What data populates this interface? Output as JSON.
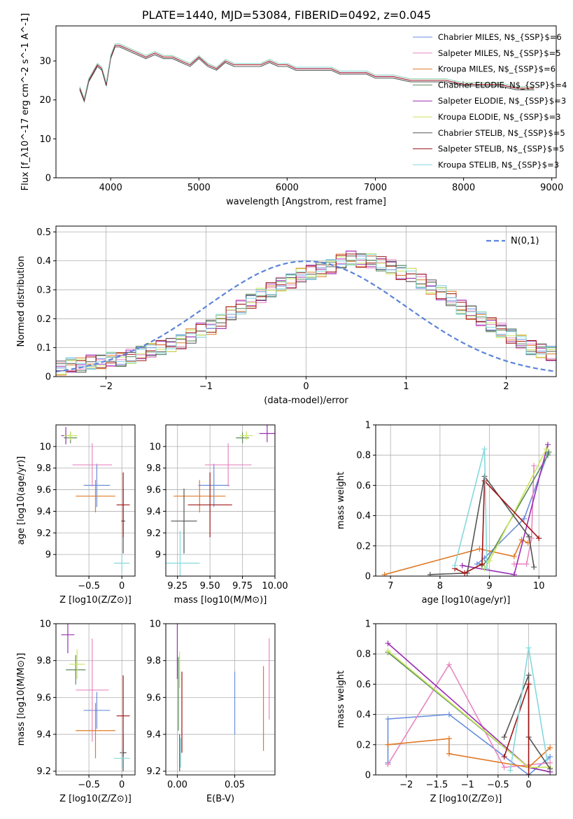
{
  "title": "PLATE=1440, MJD=53084, FIBERID=0492, z=0.045",
  "series": [
    {
      "name": "Chabrier MILES, N$_{SSP}$=6",
      "color": "#6a8fdc"
    },
    {
      "name": "Salpeter MILES, N$_{SSP}$=5",
      "color": "#e787c0"
    },
    {
      "name": "Kroupa MILES, N$_{SSP}$=6",
      "color": "#e07a26"
    },
    {
      "name": "Chabrier ELODIE, N$_{SSP}$=4",
      "color": "#5b8a5b"
    },
    {
      "name": "Salpeter ELODIE, N$_{SSP}$=3",
      "color": "#9b2fb4"
    },
    {
      "name": "Kroupa ELODIE, N$_{SSP}$=3",
      "color": "#c9e65a"
    },
    {
      "name": "Chabrier STELIB, N$_{SSP}$=5",
      "color": "#555555"
    },
    {
      "name": "Salpeter STELIB, N$_{SSP}$=5",
      "color": "#a01515"
    },
    {
      "name": "Kroupa STELIB, N$_{SSP}$=3",
      "color": "#85d9dc"
    }
  ],
  "chart_data": [
    {
      "id": "spectrum",
      "type": "line",
      "xlabel": "wavelength [Angstrom, rest frame]",
      "ylabel": "Flux [f_λ10^-17 erg cm^-2 s^-1 A^-1]",
      "xlim": [
        3380,
        9050
      ],
      "ylim": [
        0,
        39
      ],
      "xticks": [
        4000,
        5000,
        6000,
        7000,
        8000,
        9000
      ],
      "yticks": [
        0,
        10,
        20,
        30
      ],
      "grid": false,
      "legend": "top-right",
      "x": [
        3650,
        3700,
        3750,
        3800,
        3850,
        3900,
        3950,
        4000,
        4050,
        4100,
        4200,
        4300,
        4400,
        4500,
        4600,
        4700,
        4800,
        4900,
        5000,
        5100,
        5200,
        5300,
        5400,
        5500,
        5600,
        5700,
        5800,
        5900,
        6000,
        6100,
        6200,
        6300,
        6400,
        6500,
        6600,
        6700,
        6800,
        6900,
        7000,
        7200,
        7400,
        7600,
        7800,
        8000,
        8200,
        8400,
        8600,
        8800
      ],
      "y": [
        23,
        20,
        25,
        27,
        29,
        28,
        24,
        31,
        34,
        34,
        33,
        32,
        31,
        32,
        31,
        31,
        30,
        29,
        31,
        29,
        28,
        30,
        29,
        29,
        29,
        29,
        30,
        29,
        29,
        28,
        28,
        28,
        28,
        28,
        27,
        27,
        27,
        27,
        26,
        26,
        25,
        25,
        25,
        24,
        24,
        24,
        23,
        23
      ]
    },
    {
      "id": "residuals",
      "type": "bar",
      "xlabel": "(data-model)/error",
      "ylabel": "Normed distribution",
      "xlim": [
        -2.5,
        2.5
      ],
      "ylim": [
        0,
        0.52
      ],
      "xticks": [
        -2,
        -1,
        0,
        1,
        2
      ],
      "yticks": [
        0.0,
        0.1,
        0.2,
        0.3,
        0.4,
        0.5
      ],
      "grid": true,
      "legend": "top-right",
      "legend_label": "N(0,1)",
      "bin_width": 0.1,
      "bin_start": -2.5,
      "values": [
        0.03,
        0.04,
        0.04,
        0.05,
        0.05,
        0.06,
        0.06,
        0.07,
        0.08,
        0.09,
        0.1,
        0.11,
        0.12,
        0.14,
        0.16,
        0.17,
        0.19,
        0.22,
        0.24,
        0.26,
        0.28,
        0.3,
        0.32,
        0.33,
        0.35,
        0.36,
        0.37,
        0.38,
        0.4,
        0.41,
        0.4,
        0.4,
        0.39,
        0.38,
        0.36,
        0.35,
        0.33,
        0.31,
        0.29,
        0.27,
        0.24,
        0.22,
        0.2,
        0.18,
        0.16,
        0.14,
        0.12,
        0.1,
        0.09,
        0.08
      ]
    },
    {
      "id": "age-vs-Z",
      "type": "scatter",
      "xlabel": "Z [log10(Z/Z⊙)]",
      "ylabel": "age  [log10(age/yr)]",
      "xlim": [
        -1.0,
        0.2
      ],
      "ylim": [
        8.8,
        10.2
      ],
      "xticks": [
        -0.5,
        0.0
      ],
      "yticks": [
        9.0,
        9.2,
        9.4,
        9.6,
        9.8,
        10.0
      ],
      "grid": true,
      "points": [
        {
          "x": -0.38,
          "y": 9.64,
          "xerr": 0.2,
          "yerr": 0.2
        },
        {
          "x": -0.45,
          "y": 9.83,
          "xerr": 0.3,
          "yerr": 0.2
        },
        {
          "x": -0.4,
          "y": 9.54,
          "xerr": 0.3,
          "yerr": 0.15
        },
        {
          "x": -0.78,
          "y": 10.08,
          "xerr": 0.1,
          "yerr": 0.05
        },
        {
          "x": -0.85,
          "y": 10.1,
          "xerr": 0.07,
          "yerr": 0.08
        },
        {
          "x": -0.78,
          "y": 10.1,
          "xerr": 0.1,
          "yerr": 0.04
        },
        {
          "x": 0.02,
          "y": 9.31,
          "xerr": 0.03,
          "yerr": 0.3
        },
        {
          "x": 0.02,
          "y": 9.46,
          "xerr": 0.1,
          "yerr": 0.3
        },
        {
          "x": 0.0,
          "y": 8.92,
          "xerr": 0.12,
          "yerr": 0.08
        }
      ]
    },
    {
      "id": "age-vs-mass",
      "type": "scatter",
      "xlabel": "mass [log10(M/M⊙)]",
      "ylabel": "",
      "xlim": [
        9.16,
        10.0
      ],
      "ylim": [
        8.8,
        10.2
      ],
      "xticks": [
        9.25,
        9.5,
        9.75,
        10.0
      ],
      "xtick_labels": [
        "9.25",
        "9.50",
        "9.75",
        "10.00"
      ],
      "yticks": [
        9.0,
        9.2,
        9.4,
        9.6,
        9.8,
        10.0
      ],
      "grid": true,
      "points": [
        {
          "x": 9.53,
          "y": 9.64,
          "xerr": 0.12,
          "yerr": 0.2
        },
        {
          "x": 9.64,
          "y": 9.83,
          "xerr": 0.18,
          "yerr": 0.2
        },
        {
          "x": 9.42,
          "y": 9.54,
          "xerr": 0.2,
          "yerr": 0.15
        },
        {
          "x": 9.75,
          "y": 10.08,
          "xerr": 0.05,
          "yerr": 0.05
        },
        {
          "x": 9.94,
          "y": 10.12,
          "xerr": 0.06,
          "yerr": 0.08
        },
        {
          "x": 9.78,
          "y": 10.1,
          "xerr": 0.05,
          "yerr": 0.04
        },
        {
          "x": 9.3,
          "y": 9.31,
          "xerr": 0.1,
          "yerr": 0.3
        },
        {
          "x": 9.5,
          "y": 9.46,
          "xerr": 0.17,
          "yerr": 0.3
        },
        {
          "x": 9.27,
          "y": 8.92,
          "xerr": 0.15,
          "yerr": 0.3
        }
      ]
    },
    {
      "id": "weight-vs-age",
      "type": "line",
      "xlabel": "age  [log10(age/yr)]",
      "ylabel": "mass weight",
      "xlim": [
        6.7,
        10.35
      ],
      "ylim": [
        0,
        1.0
      ],
      "xticks": [
        7,
        8,
        9,
        10
      ],
      "yticks": [
        0.0,
        0.2,
        0.4,
        0.6,
        0.8,
        1.0
      ],
      "grid": true,
      "series": [
        {
          "x": [
            8.75,
            8.9,
            9.7,
            10.18
          ],
          "y": [
            0.08,
            0.12,
            0.38,
            0.81
          ]
        },
        {
          "x": [
            9.5,
            9.75,
            9.85,
            9.9
          ],
          "y": [
            0.08,
            0.08,
            0.25,
            0.73
          ]
        },
        {
          "x": [
            6.88,
            8.8,
            9.5,
            9.65,
            9.78
          ],
          "y": [
            0.01,
            0.18,
            0.13,
            0.24,
            0.22
          ]
        },
        {
          "x": [
            8.85,
            8.95,
            10.18,
            10.2
          ],
          "y": [
            0.07,
            0.1,
            0.8,
            0.82
          ]
        },
        {
          "x": [
            8.45,
            9.5,
            10.18
          ],
          "y": [
            0.07,
            0.01,
            0.87
          ]
        },
        {
          "x": [
            8.9,
            9.0,
            10.15
          ],
          "y": [
            0.05,
            0.1,
            0.84
          ]
        },
        {
          "x": [
            7.8,
            8.55,
            8.9,
            9.8,
            9.9
          ],
          "y": [
            0.01,
            0.02,
            0.66,
            0.26,
            0.06
          ]
        },
        {
          "x": [
            8.3,
            8.5,
            8.85,
            8.9,
            10.0
          ],
          "y": [
            0.05,
            0.02,
            0.08,
            0.63,
            0.25
          ]
        },
        {
          "x": [
            8.3,
            8.9,
            8.95
          ],
          "y": [
            0.07,
            0.84,
            0.05
          ]
        }
      ]
    },
    {
      "id": "mass-vs-Z",
      "type": "scatter",
      "xlabel": "Z [log10(Z/Z⊙)]",
      "ylabel": "mass [log10(M/M⊙)]",
      "xlim": [
        -1.0,
        0.2
      ],
      "ylim": [
        9.18,
        10.0
      ],
      "xticks": [
        -0.5,
        0.0
      ],
      "yticks": [
        9.2,
        9.4,
        9.6,
        9.8,
        10.0
      ],
      "grid": true,
      "points": [
        {
          "x": -0.38,
          "y": 9.53,
          "xerr": 0.2,
          "yerr": 0.1
        },
        {
          "x": -0.45,
          "y": 9.64,
          "xerr": 0.25,
          "yerr": 0.28
        },
        {
          "x": -0.4,
          "y": 9.42,
          "xerr": 0.3,
          "yerr": 0.15
        },
        {
          "x": -0.7,
          "y": 9.75,
          "xerr": 0.15,
          "yerr": 0.08
        },
        {
          "x": -0.82,
          "y": 9.94,
          "xerr": 0.1,
          "yerr": 0.1
        },
        {
          "x": -0.68,
          "y": 9.78,
          "xerr": 0.12,
          "yerr": 0.08
        },
        {
          "x": 0.02,
          "y": 9.3,
          "xerr": 0.05,
          "yerr": 0.1
        },
        {
          "x": 0.02,
          "y": 9.5,
          "xerr": 0.1,
          "yerr": 0.22
        },
        {
          "x": 0.0,
          "y": 9.27,
          "xerr": 0.12,
          "yerr": 0.05
        }
      ]
    },
    {
      "id": "mass-vs-ebv",
      "type": "scatter",
      "xlabel": "E(B-V)",
      "ylabel": "",
      "xlim": [
        -0.01,
        0.085
      ],
      "ylim": [
        9.18,
        10.0
      ],
      "xticks": [
        0.0,
        0.05
      ],
      "xtick_labels": [
        "0.00",
        "0.05"
      ],
      "yticks": [
        9.2,
        9.4,
        9.6,
        9.8,
        10.0
      ],
      "grid": true,
      "points": [
        {
          "x": 0.05,
          "y": 9.57,
          "xerr": 0.0,
          "yerr": 0.17
        },
        {
          "x": 0.08,
          "y": 9.7,
          "xerr": 0.0,
          "yerr": 0.22
        },
        {
          "x": 0.075,
          "y": 9.54,
          "xerr": 0.0,
          "yerr": 0.23
        },
        {
          "x": 0.001,
          "y": 9.62,
          "xerr": 0.0,
          "yerr": 0.2
        },
        {
          "x": 0.0,
          "y": 9.85,
          "xerr": 0.0,
          "yerr": 0.15
        },
        {
          "x": 0.002,
          "y": 9.75,
          "xerr": 0.0,
          "yerr": 0.1
        },
        {
          "x": 0.002,
          "y": 9.3,
          "xerr": 0.0,
          "yerr": 0.1
        },
        {
          "x": 0.004,
          "y": 9.52,
          "xerr": 0.0,
          "yerr": 0.22
        },
        {
          "x": 0.003,
          "y": 9.3,
          "xerr": 0.0,
          "yerr": 0.08
        }
      ]
    },
    {
      "id": "weight-vs-Z",
      "type": "line",
      "xlabel": "Z [log10(Z/Z⊙)]",
      "ylabel": "mass weight",
      "xlim": [
        -2.5,
        0.45
      ],
      "ylim": [
        0,
        1.0
      ],
      "xticks": [
        -2.0,
        -1.5,
        -1.0,
        -0.5,
        0.0
      ],
      "yticks": [
        0.0,
        0.2,
        0.4,
        0.6,
        0.8,
        1.0
      ],
      "grid": true,
      "series": [
        {
          "x": [
            -2.3,
            -2.3,
            -1.3,
            0.0,
            0.35
          ],
          "y": [
            0.08,
            0.37,
            0.4,
            0.0,
            0.12
          ]
        },
        {
          "x": [
            -2.3,
            -1.3,
            -0.4,
            0.35
          ],
          "y": [
            0.07,
            0.73,
            0.05,
            0.08
          ]
        },
        {
          "x": [
            -2.3,
            -2.3,
            -1.3,
            -1.3,
            0.0,
            0.35
          ],
          "y": [
            0.2,
            0.2,
            0.24,
            0.14,
            0.05,
            0.18
          ]
        },
        {
          "x": [
            -2.3,
            0.0,
            0.35
          ],
          "y": [
            0.81,
            0.05,
            0.02
          ]
        },
        {
          "x": [
            -2.3,
            0.0,
            0.35
          ],
          "y": [
            0.87,
            0.05,
            0.02
          ]
        },
        {
          "x": [
            -2.3,
            0.0,
            0.35
          ],
          "y": [
            0.82,
            0.05,
            0.05
          ]
        },
        {
          "x": [
            -0.4,
            0.0,
            0.0,
            0.35
          ],
          "y": [
            0.25,
            0.66,
            0.25,
            0.04
          ]
        },
        {
          "x": [
            -0.4,
            0.0,
            0.0
          ],
          "y": [
            0.12,
            0.6,
            0.0
          ]
        },
        {
          "x": [
            -0.3,
            0.0,
            0.3
          ],
          "y": [
            0.03,
            0.84,
            0.1
          ]
        }
      ]
    }
  ]
}
